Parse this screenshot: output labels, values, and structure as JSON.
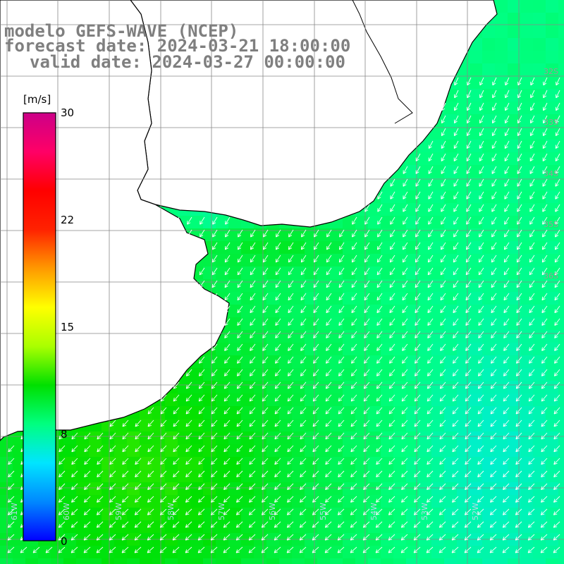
{
  "title": {
    "line1": "modelo GEFS-WAVE (NCEP)",
    "line2": "forecast date: 2024-03-21 18:00:00",
    "line3": "valid date: 2024-03-27 00:00:00"
  },
  "colorbar": {
    "unit": "[m/s]",
    "range": [
      0,
      30
    ],
    "tick_labels": [
      "30",
      "22",
      "15",
      "8",
      "0"
    ],
    "colors": [
      "#0000ff",
      "#0088ff",
      "#00e5ff",
      "#00ff80",
      "#00e000",
      "#aaff00",
      "#ffff00",
      "#ff9900",
      "#ff2200",
      "#ff0000",
      "#ff0066",
      "#cc0088"
    ]
  },
  "grid": {
    "lat_labels": [
      "32S",
      "33S",
      "34S",
      "35S",
      "36S"
    ],
    "lon_labels": [
      "61W",
      "60W",
      "59W",
      "58W",
      "57W",
      "56W",
      "55W",
      "54W",
      "53W",
      "52W"
    ]
  },
  "field": {
    "dominant_speed_ms": 8,
    "max_speed_ms": 12,
    "arrow_direction": "southwest"
  },
  "colors": {
    "coast": "#000000",
    "grid": "#888888",
    "land": "#ffffff",
    "title": "#7f7f7f"
  }
}
